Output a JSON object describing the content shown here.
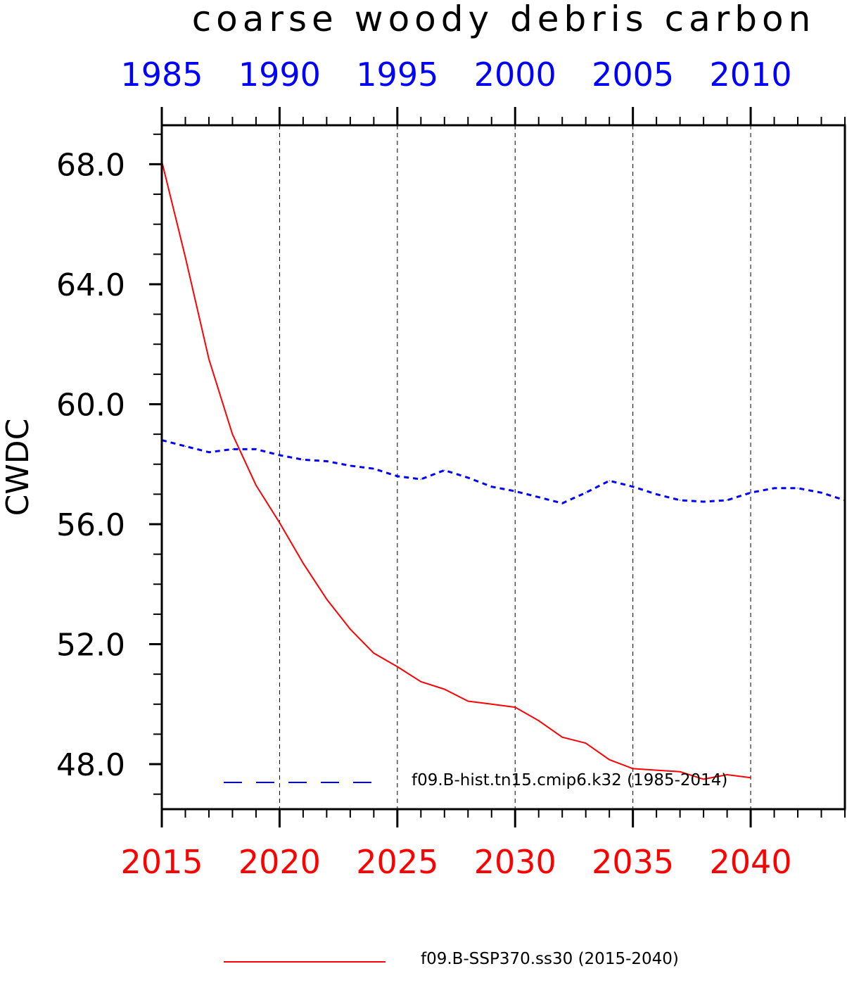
{
  "chart_data": {
    "type": "line",
    "title": "coarse woody debris carbon",
    "ylabel": "CWDC",
    "xlabel": "",
    "ylim": [
      46.5,
      69.3
    ],
    "yticks": [
      48.0,
      52.0,
      56.0,
      60.0,
      64.0,
      68.0
    ],
    "ytick_labels": [
      "48.0",
      "52.0",
      "56.0",
      "60.0",
      "64.0",
      "68.0"
    ],
    "grid": "vertical dashed lines at major x ticks",
    "bottom_axis": {
      "color": "#ff0000",
      "range": [
        2015,
        2044
      ],
      "ticks": [
        2015,
        2020,
        2025,
        2030,
        2035,
        2040
      ],
      "tick_labels": [
        "2015",
        "2020",
        "2025",
        "2030",
        "2035",
        "2040"
      ]
    },
    "top_axis": {
      "color": "#0000ff",
      "range": [
        1985,
        2014
      ],
      "ticks": [
        1985,
        1990,
        1995,
        2000,
        2005,
        2010
      ],
      "tick_labels": [
        "1985",
        "1990",
        "1995",
        "2000",
        "2005",
        "2010"
      ]
    },
    "legend_position": "bottom",
    "series": [
      {
        "name": "f09.B-hist.tn15.cmip6.k32 (1985-2014)",
        "axis": "top",
        "color": "#0000ff",
        "style": "dashed",
        "x": [
          1985,
          1986,
          1987,
          1988,
          1989,
          1990,
          1991,
          1992,
          1993,
          1994,
          1995,
          1996,
          1997,
          1998,
          1999,
          2000,
          2001,
          2002,
          2003,
          2004,
          2005,
          2006,
          2007,
          2008,
          2009,
          2010,
          2011,
          2012,
          2013,
          2014
        ],
        "values": [
          58.8,
          58.6,
          58.4,
          58.5,
          58.5,
          58.3,
          58.15,
          58.1,
          57.95,
          57.85,
          57.6,
          57.5,
          57.8,
          57.55,
          57.25,
          57.1,
          56.9,
          56.7,
          57.05,
          57.45,
          57.25,
          57.0,
          56.8,
          56.75,
          56.8,
          57.05,
          57.2,
          57.2,
          57.05,
          56.8
        ]
      },
      {
        "name": "f09.B-SSP370.ss30 (2015-2040)",
        "axis": "bottom",
        "color": "#ff0000",
        "style": "solid",
        "x": [
          2015,
          2016,
          2017,
          2018,
          2019,
          2020,
          2021,
          2022,
          2023,
          2024,
          2025,
          2026,
          2027,
          2028,
          2029,
          2030,
          2031,
          2032,
          2033,
          2034,
          2035,
          2036,
          2037,
          2038,
          2039,
          2040
        ],
        "values": [
          68.1,
          64.9,
          61.5,
          59.0,
          57.3,
          56.05,
          54.7,
          53.5,
          52.5,
          51.7,
          51.25,
          50.75,
          50.5,
          50.1,
          50.0,
          49.9,
          49.45,
          48.9,
          48.7,
          48.15,
          47.85,
          47.8,
          47.75,
          47.5,
          47.65,
          47.55
        ]
      }
    ]
  }
}
